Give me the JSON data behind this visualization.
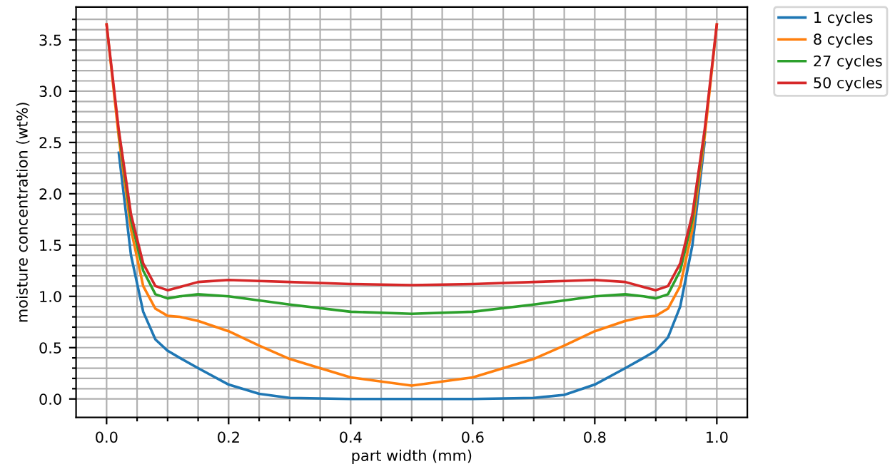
{
  "chart_data": {
    "type": "line",
    "xlabel": "part width (mm)",
    "ylabel": "moisture concentration (wt%)",
    "x": [
      0,
      0.02,
      0.04,
      0.06,
      0.08,
      0.1,
      0.12,
      0.15,
      0.2,
      0.25,
      0.3,
      0.4,
      0.5,
      0.6,
      0.7,
      0.75,
      0.8,
      0.85,
      0.88,
      0.9,
      0.92,
      0.94,
      0.96,
      0.98,
      1.0
    ],
    "series": [
      {
        "name": "1 cycles",
        "color": "#1f77b4",
        "values": [
          null,
          2.4,
          1.4,
          0.85,
          0.58,
          0.47,
          0.4,
          0.3,
          0.14,
          0.05,
          0.01,
          0.0,
          0.0,
          0.0,
          0.01,
          0.04,
          0.14,
          0.3,
          0.4,
          0.47,
          0.6,
          0.9,
          1.5,
          2.5,
          null
        ]
      },
      {
        "name": "8 cycles",
        "color": "#ff7f0e",
        "values": [
          3.65,
          2.55,
          1.65,
          1.1,
          0.88,
          0.81,
          0.8,
          0.76,
          0.66,
          0.52,
          0.39,
          0.21,
          0.13,
          0.21,
          0.39,
          0.52,
          0.66,
          0.76,
          0.8,
          0.81,
          0.88,
          1.1,
          1.65,
          2.55,
          3.65
        ]
      },
      {
        "name": "27 cycles",
        "color": "#2ca02c",
        "values": [
          null,
          2.6,
          1.75,
          1.25,
          1.02,
          0.98,
          1.0,
          1.02,
          1.0,
          0.96,
          0.92,
          0.85,
          0.83,
          0.85,
          0.92,
          0.96,
          1.0,
          1.02,
          1.0,
          0.98,
          1.02,
          1.25,
          1.75,
          2.6,
          null
        ]
      },
      {
        "name": "50 cycles",
        "color": "#d62728",
        "values": [
          3.65,
          2.62,
          1.8,
          1.32,
          1.1,
          1.06,
          1.09,
          1.14,
          1.16,
          1.15,
          1.14,
          1.12,
          1.11,
          1.12,
          1.14,
          1.15,
          1.16,
          1.14,
          1.09,
          1.06,
          1.1,
          1.32,
          1.8,
          2.62,
          3.65
        ]
      }
    ],
    "xlim": [
      -0.05,
      1.05
    ],
    "ylim": [
      -0.18,
      3.82
    ],
    "xticks": [
      {
        "value": 0.0,
        "label": "0.0"
      },
      {
        "value": 0.05,
        "label": null
      },
      {
        "value": 0.1,
        "label": null
      },
      {
        "value": 0.15,
        "label": null
      },
      {
        "value": 0.2,
        "label": "0.2"
      },
      {
        "value": 0.25,
        "label": null
      },
      {
        "value": 0.3,
        "label": null
      },
      {
        "value": 0.35,
        "label": null
      },
      {
        "value": 0.4,
        "label": "0.4"
      },
      {
        "value": 0.45,
        "label": null
      },
      {
        "value": 0.5,
        "label": null
      },
      {
        "value": 0.55,
        "label": null
      },
      {
        "value": 0.6,
        "label": "0.6"
      },
      {
        "value": 0.65,
        "label": null
      },
      {
        "value": 0.7,
        "label": null
      },
      {
        "value": 0.75,
        "label": null
      },
      {
        "value": 0.8,
        "label": "0.8"
      },
      {
        "value": 0.85,
        "label": null
      },
      {
        "value": 0.9,
        "label": null
      },
      {
        "value": 0.95,
        "label": null
      },
      {
        "value": 1.0,
        "label": "1.0"
      }
    ],
    "yticks": [
      {
        "value": 0.0,
        "label": "0.0"
      },
      {
        "value": 0.1,
        "label": null
      },
      {
        "value": 0.2,
        "label": null
      },
      {
        "value": 0.3,
        "label": null
      },
      {
        "value": 0.4,
        "label": null
      },
      {
        "value": 0.5,
        "label": "0.5"
      },
      {
        "value": 0.6,
        "label": null
      },
      {
        "value": 0.7,
        "label": null
      },
      {
        "value": 0.8,
        "label": null
      },
      {
        "value": 0.9,
        "label": null
      },
      {
        "value": 1.0,
        "label": "1.0"
      },
      {
        "value": 1.1,
        "label": null
      },
      {
        "value": 1.2,
        "label": null
      },
      {
        "value": 1.3,
        "label": null
      },
      {
        "value": 1.4,
        "label": null
      },
      {
        "value": 1.5,
        "label": "1.5"
      },
      {
        "value": 1.6,
        "label": null
      },
      {
        "value": 1.7,
        "label": null
      },
      {
        "value": 1.8,
        "label": null
      },
      {
        "value": 1.9,
        "label": null
      },
      {
        "value": 2.0,
        "label": "2.0"
      },
      {
        "value": 2.1,
        "label": null
      },
      {
        "value": 2.2,
        "label": null
      },
      {
        "value": 2.3,
        "label": null
      },
      {
        "value": 2.4,
        "label": null
      },
      {
        "value": 2.5,
        "label": "2.5"
      },
      {
        "value": 2.6,
        "label": null
      },
      {
        "value": 2.7,
        "label": null
      },
      {
        "value": 2.8,
        "label": null
      },
      {
        "value": 2.9,
        "label": null
      },
      {
        "value": 3.0,
        "label": "3.0"
      },
      {
        "value": 3.1,
        "label": null
      },
      {
        "value": 3.2,
        "label": null
      },
      {
        "value": 3.3,
        "label": null
      },
      {
        "value": 3.4,
        "label": null
      },
      {
        "value": 3.5,
        "label": "3.5"
      },
      {
        "value": 3.6,
        "label": null
      },
      {
        "value": 3.7,
        "label": null
      }
    ],
    "grid": true,
    "legend": "top right",
    "line_style": "solid"
  }
}
